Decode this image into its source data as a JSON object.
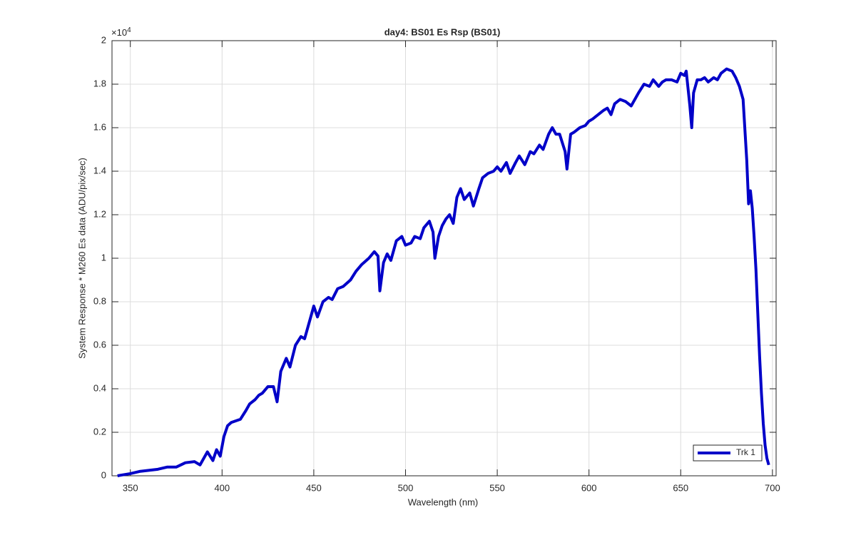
{
  "chart_data": {
    "type": "line",
    "title": "day4: BS01  Es Rsp (BS01)",
    "xlabel": "Wavelength (nm)",
    "ylabel": "System Response * M260 Es data  (ADU/pix/sec)",
    "y_exponent_label": "×10",
    "y_exponent": "4",
    "xlim": [
      340,
      702
    ],
    "ylim": [
      0,
      2
    ],
    "xticks": [
      350,
      400,
      450,
      500,
      550,
      600,
      650,
      700
    ],
    "yticks": [
      0,
      0.2,
      0.4,
      0.6,
      0.8,
      1,
      1.2,
      1.4,
      1.6,
      1.8,
      2
    ],
    "grid": true,
    "legend": "southeast",
    "x": [
      343,
      345,
      350,
      355,
      360,
      365,
      370,
      375,
      380,
      385,
      388,
      392,
      395,
      397,
      399,
      401,
      403,
      405,
      410,
      413,
      415,
      418,
      420,
      422,
      425,
      428,
      430,
      432,
      435,
      437,
      440,
      443,
      445,
      448,
      450,
      452,
      455,
      458,
      460,
      463,
      466,
      470,
      473,
      476,
      480,
      483,
      485,
      486,
      488,
      490,
      492,
      495,
      498,
      500,
      503,
      505,
      508,
      510,
      513,
      515,
      516,
      518,
      520,
      522,
      524,
      526,
      528,
      530,
      532,
      535,
      537,
      540,
      542,
      545,
      548,
      550,
      552,
      555,
      557,
      560,
      562,
      565,
      568,
      570,
      573,
      575,
      578,
      580,
      582,
      584,
      587,
      588,
      590,
      592,
      595,
      598,
      600,
      602,
      605,
      608,
      610,
      612,
      614,
      617,
      620,
      623,
      625,
      627,
      630,
      633,
      635,
      638,
      640,
      642,
      645,
      648,
      650,
      652,
      653,
      655,
      656,
      657,
      659,
      661,
      663,
      665,
      668,
      670,
      672,
      675,
      678,
      680,
      682,
      684,
      686,
      687,
      688,
      689,
      690,
      691,
      692,
      693,
      694,
      695,
      696,
      697,
      698
    ],
    "series": [
      {
        "name": "Trk 1",
        "color": "#0000c8",
        "values": [
          0,
          0.003,
          0.01,
          0.02,
          0.025,
          0.03,
          0.04,
          0.04,
          0.06,
          0.065,
          0.05,
          0.11,
          0.07,
          0.12,
          0.09,
          0.18,
          0.23,
          0.245,
          0.26,
          0.3,
          0.33,
          0.35,
          0.37,
          0.38,
          0.41,
          0.41,
          0.34,
          0.48,
          0.54,
          0.5,
          0.6,
          0.64,
          0.63,
          0.72,
          0.78,
          0.73,
          0.8,
          0.82,
          0.81,
          0.86,
          0.87,
          0.9,
          0.94,
          0.97,
          1.0,
          1.03,
          1.01,
          0.85,
          0.98,
          1.02,
          0.99,
          1.08,
          1.1,
          1.06,
          1.07,
          1.1,
          1.09,
          1.14,
          1.17,
          1.12,
          1.0,
          1.1,
          1.15,
          1.18,
          1.2,
          1.16,
          1.28,
          1.32,
          1.27,
          1.3,
          1.24,
          1.32,
          1.37,
          1.39,
          1.4,
          1.42,
          1.4,
          1.44,
          1.39,
          1.44,
          1.47,
          1.43,
          1.49,
          1.48,
          1.52,
          1.5,
          1.57,
          1.6,
          1.57,
          1.57,
          1.49,
          1.41,
          1.57,
          1.58,
          1.6,
          1.61,
          1.63,
          1.64,
          1.66,
          1.68,
          1.69,
          1.66,
          1.71,
          1.73,
          1.72,
          1.7,
          1.73,
          1.76,
          1.8,
          1.79,
          1.82,
          1.79,
          1.81,
          1.82,
          1.82,
          1.81,
          1.85,
          1.84,
          1.86,
          1.7,
          1.6,
          1.76,
          1.82,
          1.82,
          1.83,
          1.81,
          1.83,
          1.82,
          1.85,
          1.87,
          1.86,
          1.83,
          1.79,
          1.73,
          1.45,
          1.25,
          1.31,
          1.23,
          1.1,
          0.95,
          0.75,
          0.55,
          0.38,
          0.24,
          0.14,
          0.08,
          0.05
        ]
      }
    ]
  }
}
